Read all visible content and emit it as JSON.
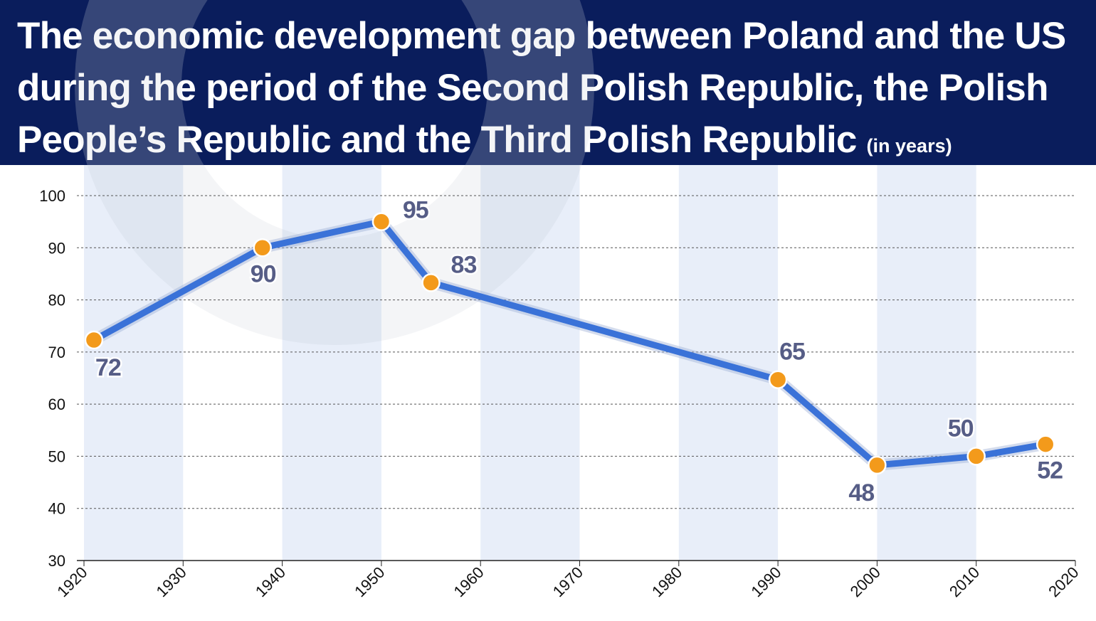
{
  "header": {
    "title": "The economic development gap between Poland and the US during the period of the Second Polish Republic, the Polish People’s Republic and the Third Polish Republic",
    "unit": "(in years)"
  },
  "colors": {
    "header_bg": "#0a1d5c",
    "band": "#e8eef9",
    "line": "#3a72d8",
    "marker": "#f39a1b",
    "label_text": "#565d86"
  },
  "chart_data": {
    "type": "line",
    "title": "The economic development gap between Poland and the US during the period of the Second Polish Republic, the Polish People’s Republic and the Third Polish Republic (in years)",
    "xlabel": "",
    "ylabel": "",
    "xlim": [
      1920,
      2020
    ],
    "ylim": [
      30,
      100
    ],
    "x_ticks": [
      "1920",
      "1930",
      "1940",
      "1950",
      "1960",
      "1970",
      "1980",
      "1990",
      "2000",
      "2010",
      "2020"
    ],
    "y_ticks": [
      "30",
      "40",
      "50",
      "60",
      "70",
      "80",
      "90",
      "100"
    ],
    "grid": "horizontal dashed",
    "shaded_decades": [
      [
        1920,
        1930
      ],
      [
        1940,
        1950
      ],
      [
        1960,
        1970
      ],
      [
        1980,
        1990
      ],
      [
        2000,
        2010
      ]
    ],
    "series": [
      {
        "x": [
          1921,
          1938,
          1950,
          1955,
          1990,
          2000,
          2010,
          2017
        ],
        "y": [
          72.3,
          90,
          95,
          83.3,
          64.7,
          48.3,
          50,
          52.3
        ],
        "labels": [
          "72",
          "90",
          "95",
          "83",
          "65",
          "48",
          "50",
          "52"
        ]
      }
    ]
  }
}
